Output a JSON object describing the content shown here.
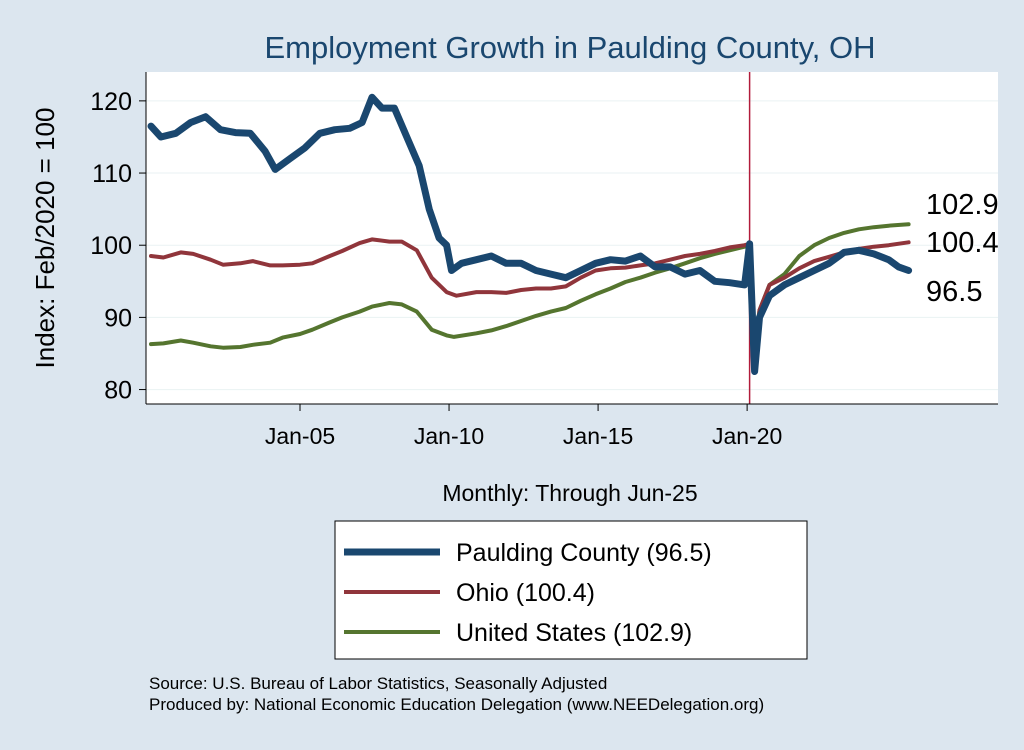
{
  "chart_data": {
    "type": "line",
    "title": "Employment Growth in Paulding  County, OH",
    "ylabel": "Index: Feb/2020 = 100",
    "xlabel": "Monthly: Through Jun-25",
    "x_start": "2000-01",
    "x_end": "2025-06",
    "x_ticks": [
      "Jan-05",
      "Jan-10",
      "Jan-15",
      "Jan-20"
    ],
    "xlim": [
      "1999-11",
      "2028-06"
    ],
    "y_ticks": [
      80,
      90,
      100,
      110,
      120
    ],
    "ylim": [
      78,
      124
    ],
    "grid": true,
    "reference_line": "2020-02",
    "legend_position": "bottom",
    "end_labels": [
      "102.9",
      "100.4",
      "96.5"
    ],
    "source": "Source: U.S. Bureau of Labor Statistics, Seasonally Adjusted",
    "producer": "Produced by: National Economic Education Delegation (www.NEEDelegation.org)",
    "series": [
      {
        "name": "Paulding  County (96.5)",
        "color": "#1a476f",
        "points": [
          [
            "2000-01",
            116.5
          ],
          [
            "2000-05",
            115.0
          ],
          [
            "2000-11",
            115.5
          ],
          [
            "2001-05",
            117.0
          ],
          [
            "2001-11",
            117.8
          ],
          [
            "2002-05",
            116.0
          ],
          [
            "2002-11",
            115.6
          ],
          [
            "2003-05",
            115.5
          ],
          [
            "2003-11",
            113.0
          ],
          [
            "2004-03",
            110.5
          ],
          [
            "2004-09",
            112.0
          ],
          [
            "2005-03",
            113.5
          ],
          [
            "2005-09",
            115.5
          ],
          [
            "2006-03",
            116.0
          ],
          [
            "2006-09",
            116.2
          ],
          [
            "2007-02",
            117.0
          ],
          [
            "2007-06",
            120.5
          ],
          [
            "2007-10",
            119.0
          ],
          [
            "2008-03",
            119.0
          ],
          [
            "2008-08",
            115.0
          ],
          [
            "2009-01",
            111.0
          ],
          [
            "2009-05",
            105.0
          ],
          [
            "2009-09",
            101.0
          ],
          [
            "2009-12",
            100.0
          ],
          [
            "2010-02",
            96.5
          ],
          [
            "2010-06",
            97.5
          ],
          [
            "2010-12",
            98.0
          ],
          [
            "2011-06",
            98.5
          ],
          [
            "2011-12",
            97.5
          ],
          [
            "2012-06",
            97.5
          ],
          [
            "2012-12",
            96.5
          ],
          [
            "2013-06",
            96.0
          ],
          [
            "2013-12",
            95.5
          ],
          [
            "2014-06",
            96.5
          ],
          [
            "2014-12",
            97.5
          ],
          [
            "2015-06",
            98.0
          ],
          [
            "2015-12",
            97.8
          ],
          [
            "2016-06",
            98.5
          ],
          [
            "2016-12",
            97.0
          ],
          [
            "2017-06",
            97.0
          ],
          [
            "2017-12",
            96.0
          ],
          [
            "2018-06",
            96.5
          ],
          [
            "2018-12",
            95.0
          ],
          [
            "2019-06",
            94.8
          ],
          [
            "2019-12",
            94.5
          ],
          [
            "2020-02",
            100.2
          ],
          [
            "2020-04",
            82.5
          ],
          [
            "2020-06",
            90.0
          ],
          [
            "2020-10",
            93.0
          ],
          [
            "2021-04",
            94.5
          ],
          [
            "2021-10",
            95.5
          ],
          [
            "2022-04",
            96.5
          ],
          [
            "2022-10",
            97.5
          ],
          [
            "2023-04",
            99.0
          ],
          [
            "2023-10",
            99.3
          ],
          [
            "2024-04",
            98.8
          ],
          [
            "2024-10",
            98.0
          ],
          [
            "2025-02",
            97.0
          ],
          [
            "2025-06",
            96.5
          ]
        ]
      },
      {
        "name": "Ohio (100.4)",
        "color": "#90353b",
        "points": [
          [
            "2000-01",
            98.5
          ],
          [
            "2000-06",
            98.3
          ],
          [
            "2001-01",
            99.0
          ],
          [
            "2001-06",
            98.8
          ],
          [
            "2002-01",
            98.0
          ],
          [
            "2002-06",
            97.3
          ],
          [
            "2003-01",
            97.5
          ],
          [
            "2003-06",
            97.8
          ],
          [
            "2004-01",
            97.2
          ],
          [
            "2004-06",
            97.2
          ],
          [
            "2005-01",
            97.3
          ],
          [
            "2005-06",
            97.5
          ],
          [
            "2006-01",
            98.5
          ],
          [
            "2006-06",
            99.2
          ],
          [
            "2007-01",
            100.3
          ],
          [
            "2007-06",
            100.8
          ],
          [
            "2008-01",
            100.5
          ],
          [
            "2008-06",
            100.5
          ],
          [
            "2008-12",
            99.3
          ],
          [
            "2009-06",
            95.5
          ],
          [
            "2009-12",
            93.5
          ],
          [
            "2010-04",
            93.0
          ],
          [
            "2010-12",
            93.5
          ],
          [
            "2011-06",
            93.5
          ],
          [
            "2011-12",
            93.4
          ],
          [
            "2012-06",
            93.8
          ],
          [
            "2012-12",
            94.0
          ],
          [
            "2013-06",
            94.0
          ],
          [
            "2013-12",
            94.3
          ],
          [
            "2014-06",
            95.5
          ],
          [
            "2014-12",
            96.5
          ],
          [
            "2015-06",
            96.8
          ],
          [
            "2015-12",
            96.9
          ],
          [
            "2016-06",
            97.2
          ],
          [
            "2016-12",
            97.5
          ],
          [
            "2017-06",
            98.0
          ],
          [
            "2017-12",
            98.5
          ],
          [
            "2018-06",
            98.8
          ],
          [
            "2018-12",
            99.2
          ],
          [
            "2019-06",
            99.7
          ],
          [
            "2019-12",
            100.0
          ],
          [
            "2020-02",
            100.2
          ],
          [
            "2020-04",
            82.5
          ],
          [
            "2020-06",
            91.0
          ],
          [
            "2020-10",
            94.5
          ],
          [
            "2021-04",
            95.5
          ],
          [
            "2021-10",
            96.8
          ],
          [
            "2022-04",
            97.8
          ],
          [
            "2022-10",
            98.4
          ],
          [
            "2023-04",
            99.0
          ],
          [
            "2023-10",
            99.5
          ],
          [
            "2024-04",
            99.8
          ],
          [
            "2024-10",
            100.0
          ],
          [
            "2025-06",
            100.4
          ]
        ]
      },
      {
        "name": "United States (102.9)",
        "color": "#55752f",
        "points": [
          [
            "2000-01",
            86.3
          ],
          [
            "2000-06",
            86.4
          ],
          [
            "2001-01",
            86.8
          ],
          [
            "2001-06",
            86.5
          ],
          [
            "2002-01",
            86.0
          ],
          [
            "2002-06",
            85.8
          ],
          [
            "2003-01",
            85.9
          ],
          [
            "2003-06",
            86.2
          ],
          [
            "2004-01",
            86.5
          ],
          [
            "2004-06",
            87.2
          ],
          [
            "2005-01",
            87.7
          ],
          [
            "2005-06",
            88.3
          ],
          [
            "2006-01",
            89.3
          ],
          [
            "2006-06",
            90.0
          ],
          [
            "2007-01",
            90.8
          ],
          [
            "2007-06",
            91.5
          ],
          [
            "2008-01",
            92.0
          ],
          [
            "2008-06",
            91.8
          ],
          [
            "2008-12",
            90.8
          ],
          [
            "2009-06",
            88.3
          ],
          [
            "2009-12",
            87.5
          ],
          [
            "2010-03",
            87.3
          ],
          [
            "2010-12",
            87.8
          ],
          [
            "2011-06",
            88.2
          ],
          [
            "2011-12",
            88.8
          ],
          [
            "2012-06",
            89.5
          ],
          [
            "2012-12",
            90.2
          ],
          [
            "2013-06",
            90.8
          ],
          [
            "2013-12",
            91.3
          ],
          [
            "2014-06",
            92.3
          ],
          [
            "2014-12",
            93.2
          ],
          [
            "2015-06",
            94.0
          ],
          [
            "2015-12",
            94.9
          ],
          [
            "2016-06",
            95.5
          ],
          [
            "2016-12",
            96.2
          ],
          [
            "2017-06",
            96.8
          ],
          [
            "2017-12",
            97.5
          ],
          [
            "2018-06",
            98.2
          ],
          [
            "2018-12",
            98.8
          ],
          [
            "2019-06",
            99.3
          ],
          [
            "2019-12",
            99.8
          ],
          [
            "2020-02",
            100.0
          ],
          [
            "2020-04",
            86.0
          ],
          [
            "2020-06",
            91.0
          ],
          [
            "2020-10",
            94.5
          ],
          [
            "2021-04",
            96.0
          ],
          [
            "2021-10",
            98.5
          ],
          [
            "2022-04",
            100.0
          ],
          [
            "2022-10",
            101.0
          ],
          [
            "2023-04",
            101.7
          ],
          [
            "2023-10",
            102.2
          ],
          [
            "2024-04",
            102.5
          ],
          [
            "2024-10",
            102.7
          ],
          [
            "2025-06",
            102.9
          ]
        ]
      }
    ]
  }
}
